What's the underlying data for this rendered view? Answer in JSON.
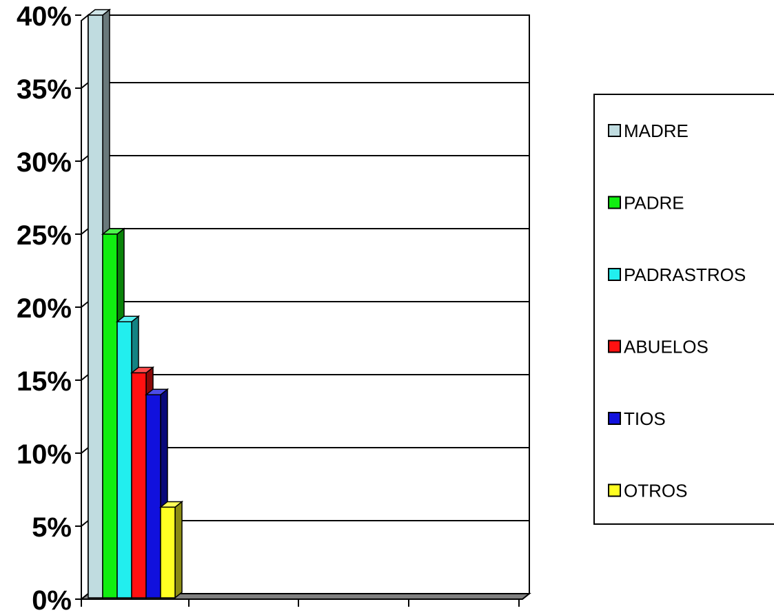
{
  "chart_data": {
    "type": "bar",
    "title": "",
    "xlabel": "",
    "ylabel": "",
    "ylim": [
      0,
      40
    ],
    "yticks": [
      0,
      5,
      10,
      15,
      20,
      25,
      30,
      35,
      40
    ],
    "ytick_labels": [
      "0%",
      "5%",
      "10%",
      "15%",
      "20%",
      "25%",
      "30%",
      "35%",
      "40%"
    ],
    "grid": true,
    "legend_position": "right",
    "three_d": true,
    "series": [
      {
        "name": "MADRE",
        "value": 40,
        "color": "#c0dce0"
      },
      {
        "name": "PADRE",
        "value": 25,
        "color": "#11ee11"
      },
      {
        "name": "PADRASTROS",
        "value": 19,
        "color": "#22eeee"
      },
      {
        "name": "ABUELOS",
        "value": 15.5,
        "color": "#ff1111"
      },
      {
        "name": "TIOS",
        "value": 14,
        "color": "#1111dd"
      },
      {
        "name": "OTROS",
        "value": 6.3,
        "color": "#ffff22"
      }
    ]
  }
}
